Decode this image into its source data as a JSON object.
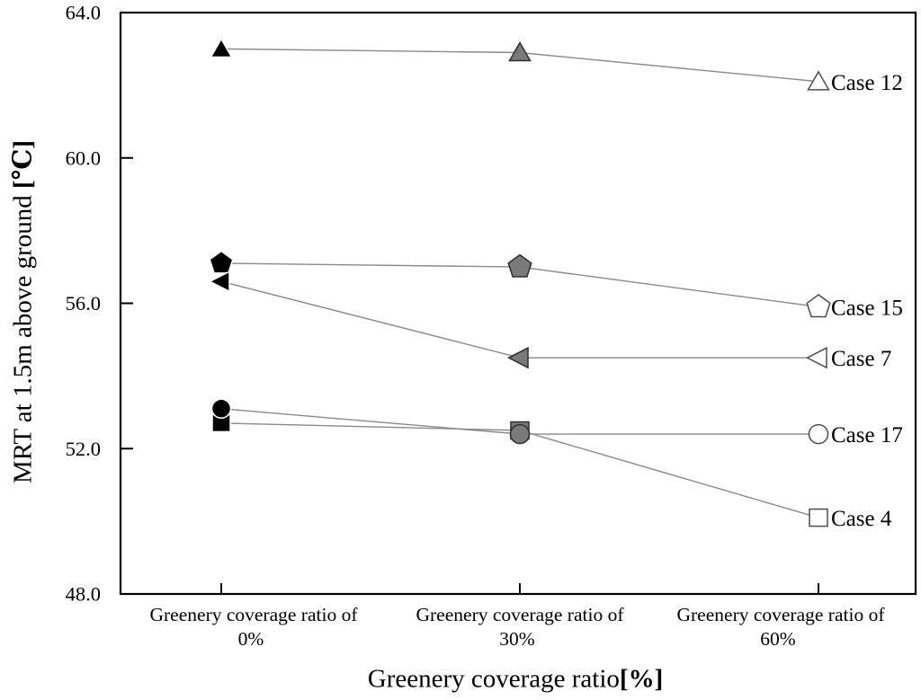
{
  "figure": {
    "ylabel": {
      "text": "MRT at 1.5m above ground ",
      "unit": "[℃]"
    },
    "xlabel": {
      "text": "Greenery coverage ratio",
      "unit": "[%]"
    }
  },
  "chart_data": {
    "type": "line",
    "xlabel": "Greenery coverage ratio[%]",
    "ylabel": "MRT at 1.5m above ground [℃]",
    "categories": [
      [
        "Greenery coverage ratio of",
        "0%"
      ],
      [
        "Greenery coverage ratio of",
        "30%"
      ],
      [
        "Greenery coverage ratio of",
        "60%"
      ]
    ],
    "yticks": [
      64.0,
      60.0,
      56.0,
      52.0,
      48.0
    ],
    "ylim": [
      48.0,
      64.0
    ],
    "grid": false,
    "legend_position": "right-of-last-point",
    "series": [
      {
        "name": "Case 12",
        "marker": "triangle-up",
        "values": [
          63.0,
          62.9,
          62.1
        ]
      },
      {
        "name": "Case 15",
        "marker": "pentagon",
        "values": [
          57.1,
          57.0,
          55.9
        ]
      },
      {
        "name": "Case 7",
        "marker": "triangle-left",
        "values": [
          56.6,
          54.5,
          54.5
        ]
      },
      {
        "name": "Case 4",
        "marker": "square",
        "values": [
          52.7,
          52.5,
          50.1
        ]
      },
      {
        "name": "Case 17",
        "marker": "circle",
        "values": [
          53.1,
          52.4,
          52.4
        ]
      }
    ],
    "point_fills_by_x": [
      "#000000",
      "#7a7a7a",
      "#ffffff"
    ],
    "point_strokes_by_x": [
      "#ffffff",
      "#2e2e2e",
      "#4d4d4d"
    ],
    "line_color": "#8a8a8a",
    "axis_color": "#000000"
  }
}
